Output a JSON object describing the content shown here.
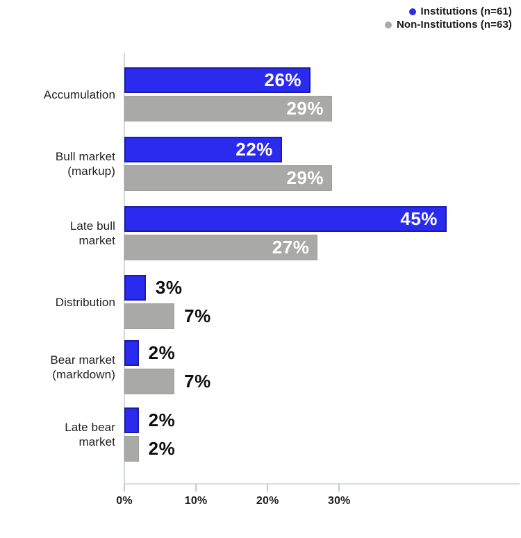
{
  "legend": {
    "items": [
      {
        "label": "Institutions (n=61)",
        "color": "#2b2bef"
      },
      {
        "label": "Non-Institutions (n=63)",
        "color": "#a9a9a7"
      }
    ],
    "position": "top-right"
  },
  "chart_data": {
    "type": "bar",
    "orientation": "horizontal",
    "title": "",
    "categories": [
      {
        "key": "accumulation",
        "lines": [
          "Accumulation"
        ]
      },
      {
        "key": "bull-market-markup",
        "lines": [
          "Bull market",
          "(markup)"
        ]
      },
      {
        "key": "late-bull-market",
        "lines": [
          "Late bull",
          "market"
        ]
      },
      {
        "key": "distribution",
        "lines": [
          "Distribution"
        ]
      },
      {
        "key": "bear-market-markdown",
        "lines": [
          "Bear market",
          "(markdown)"
        ]
      },
      {
        "key": "late-bear-market",
        "lines": [
          "Late bear",
          "market"
        ]
      }
    ],
    "series": [
      {
        "key": "institutions",
        "name": "Institutions (n=61)",
        "color": "#2b2bef",
        "values": [
          26,
          22,
          45,
          3,
          2,
          2
        ]
      },
      {
        "key": "non-institutions",
        "name": "Non-Institutions (n=63)",
        "color": "#a9a9a7",
        "values": [
          29,
          29,
          27,
          7,
          7,
          2
        ]
      }
    ],
    "value_suffix": "%",
    "value_label_inside_threshold": 10,
    "value_label_color_inside": "#ffffff",
    "value_label_color_outside": "#0f0f0f",
    "x_ticks": [
      {
        "label": "0%",
        "value": 0
      },
      {
        "label": "10%",
        "value": 10
      },
      {
        "label": "20%",
        "value": 20
      },
      {
        "label": "30%",
        "value": 30
      }
    ],
    "xlim": [
      0,
      55
    ],
    "grid": false,
    "legend_position": "top-right"
  }
}
